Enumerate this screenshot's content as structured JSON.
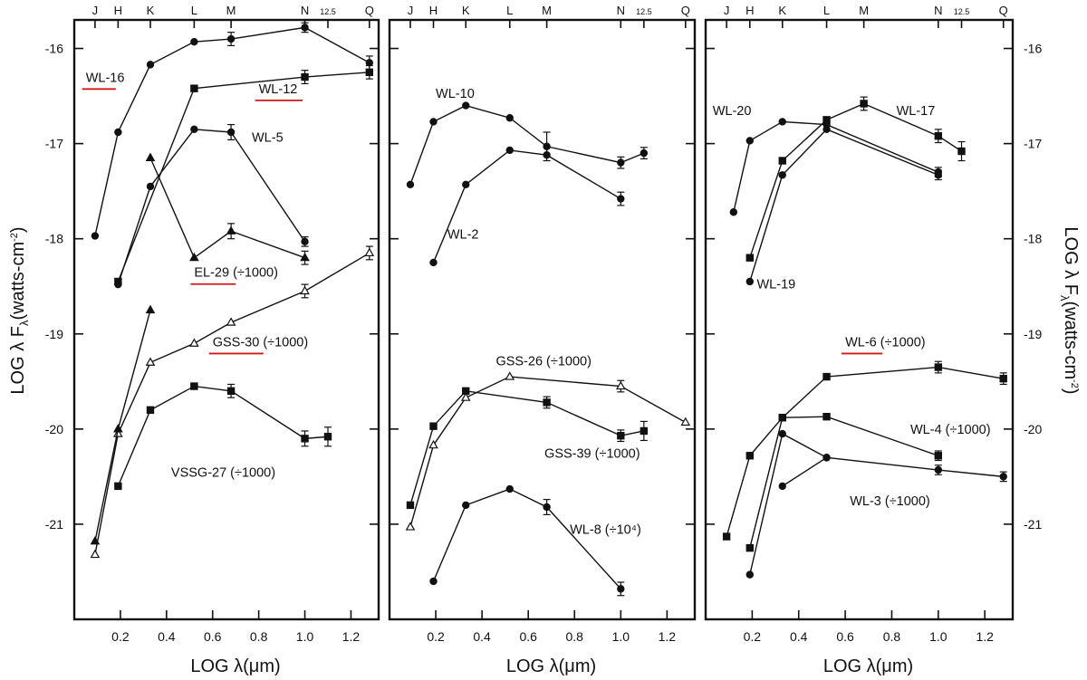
{
  "chart_data": [
    {
      "type": "line",
      "panel": "left",
      "xlabel": "LOG λ(μm)",
      "ylabel": "LOG λ F",
      "ylabel_sub": "λ",
      "ylabel_unit": "(watts-cm",
      "ylabel_exp": "-2",
      "ylabel_close": ")",
      "xlim": [
        0.0,
        1.32
      ],
      "ylim": [
        -22.0,
        -15.7
      ],
      "x_ticks": [
        {
          "value": 0.2,
          "label": "0.2"
        },
        {
          "value": 0.4,
          "label": "0.4"
        },
        {
          "value": 0.6,
          "label": "0.6"
        },
        {
          "value": 0.8,
          "label": "0.8"
        },
        {
          "value": 1.0,
          "label": "1.0"
        },
        {
          "value": 1.2,
          "label": "1.2"
        }
      ],
      "y_ticks": [
        {
          "value": -16,
          "label": "-16"
        },
        {
          "value": -17,
          "label": "-17"
        },
        {
          "value": -18,
          "label": "-18"
        },
        {
          "value": -19,
          "label": "-19"
        },
        {
          "value": -20,
          "label": "-20"
        },
        {
          "value": -21,
          "label": "-21"
        }
      ],
      "bands": [
        {
          "label": "J",
          "x": 0.09
        },
        {
          "label": "H",
          "x": 0.19
        },
        {
          "label": "K",
          "x": 0.33
        },
        {
          "label": "L",
          "x": 0.52
        },
        {
          "label": "M",
          "x": 0.68
        },
        {
          "label": "N",
          "x": 1.0
        },
        {
          "label": "12.5",
          "x": 1.1,
          "small": true
        },
        {
          "label": "Q",
          "x": 1.28
        }
      ],
      "series": [
        {
          "name": "WL-16",
          "marker": "circle",
          "underline": true,
          "label_pos": [
            0.05,
            -16.35
          ],
          "label_end": 0.18,
          "points": [
            {
              "x": 0.09,
              "y": -17.97
            },
            {
              "x": 0.19,
              "y": -16.88
            },
            {
              "x": 0.33,
              "y": -16.17
            },
            {
              "x": 0.52,
              "y": -15.93
            },
            {
              "x": 0.68,
              "y": -15.9,
              "err": 0.07
            },
            {
              "x": 1.0,
              "y": -15.78,
              "err": 0.05
            },
            {
              "x": 1.28,
              "y": -16.15,
              "err": 0.07
            }
          ]
        },
        {
          "name": "WL-12",
          "marker": "square",
          "underline": true,
          "label_pos": [
            0.8,
            -16.47
          ],
          "label_end": 0.99,
          "points": [
            {
              "x": 0.19,
              "y": -18.45
            },
            {
              "x": 0.52,
              "y": -16.42
            },
            {
              "x": 1.0,
              "y": -16.3,
              "err": 0.07
            },
            {
              "x": 1.28,
              "y": -16.25,
              "err": 0.07
            }
          ]
        },
        {
          "name": "WL-5",
          "marker": "circle",
          "label_pos": [
            0.77,
            -16.98
          ],
          "points": [
            {
              "x": 0.19,
              "y": -18.48
            },
            {
              "x": 0.33,
              "y": -17.45
            },
            {
              "x": 0.52,
              "y": -16.85
            },
            {
              "x": 0.68,
              "y": -16.88,
              "err": 0.08
            },
            {
              "x": 1.0,
              "y": -18.03,
              "err": 0.05
            }
          ]
        },
        {
          "name": "EL-29 (÷1000)",
          "marker": "triangle",
          "underline": true,
          "underline_label": "EL-29",
          "label_pos": [
            0.52,
            -18.4
          ],
          "label_end": 0.7,
          "points": [
            {
              "x": 0.33,
              "y": -17.15
            },
            {
              "x": 0.52,
              "y": -18.2
            },
            {
              "x": 0.68,
              "y": -17.92,
              "err": 0.08
            },
            {
              "x": 1.0,
              "y": -18.2,
              "err": 0.07
            }
          ]
        },
        {
          "name": "GSS-30 (÷1000)",
          "marker": "triangle-open",
          "underline": true,
          "underline_label": "GSS-30",
          "label_pos": [
            0.6,
            -19.13
          ],
          "label_end": 0.82,
          "points": [
            {
              "x": 0.09,
              "y": -21.32
            },
            {
              "x": 0.19,
              "y": -20.05
            },
            {
              "x": 0.33,
              "y": -19.3
            },
            {
              "x": 0.52,
              "y": -19.1
            },
            {
              "x": 0.68,
              "y": -18.88
            },
            {
              "x": 1.0,
              "y": -18.55,
              "err": 0.07
            },
            {
              "x": 1.28,
              "y": -18.15,
              "err": 0.07
            }
          ]
        },
        {
          "name": "",
          "marker": "triangle",
          "points": [
            {
              "x": 0.09,
              "y": -21.18
            },
            {
              "x": 0.19,
              "y": -20.0
            },
            {
              "x": 0.33,
              "y": -18.75
            }
          ]
        },
        {
          "name": "VSSG-27 (÷1000)",
          "marker": "square",
          "label_pos": [
            0.42,
            -20.5
          ],
          "points": [
            {
              "x": 0.19,
              "y": -20.6
            },
            {
              "x": 0.33,
              "y": -19.8
            },
            {
              "x": 0.52,
              "y": -19.55
            },
            {
              "x": 0.68,
              "y": -19.6,
              "err": 0.07
            },
            {
              "x": 1.0,
              "y": -20.1,
              "err": 0.08
            },
            {
              "x": 1.1,
              "y": -20.08,
              "err": 0.1
            }
          ]
        }
      ]
    },
    {
      "type": "line",
      "panel": "middle",
      "xlabel": "LOG λ(μm)",
      "xlim": [
        0.0,
        1.32
      ],
      "ylim": [
        -22.0,
        -15.7
      ],
      "x_ticks": [
        {
          "value": 0.2,
          "label": "0.2"
        },
        {
          "value": 0.4,
          "label": "0.4"
        },
        {
          "value": 0.6,
          "label": "0.6"
        },
        {
          "value": 0.8,
          "label": "0.8"
        },
        {
          "value": 1.0,
          "label": "1.0"
        },
        {
          "value": 1.2,
          "label": "1.2"
        }
      ],
      "bands": [
        {
          "label": "J",
          "x": 0.09
        },
        {
          "label": "H",
          "x": 0.19
        },
        {
          "label": "K",
          "x": 0.33
        },
        {
          "label": "L",
          "x": 0.52
        },
        {
          "label": "M",
          "x": 0.68
        },
        {
          "label": "N",
          "x": 1.0
        },
        {
          "label": "12.5",
          "x": 1.1,
          "small": true
        },
        {
          "label": "Q",
          "x": 1.28
        }
      ],
      "series": [
        {
          "name": "WL-10",
          "marker": "circle",
          "label_pos": [
            0.2,
            -16.52
          ],
          "points": [
            {
              "x": 0.09,
              "y": -17.43
            },
            {
              "x": 0.19,
              "y": -16.77
            },
            {
              "x": 0.33,
              "y": -16.6
            },
            {
              "x": 0.52,
              "y": -16.73
            },
            {
              "x": 0.68,
              "y": -17.03,
              "err": 0.15
            },
            {
              "x": 1.0,
              "y": -17.2,
              "err": 0.06
            },
            {
              "x": 1.1,
              "y": -17.1,
              "err": 0.06
            }
          ]
        },
        {
          "name": "WL-2",
          "marker": "circle",
          "label_pos": [
            0.25,
            -18.0
          ],
          "points": [
            {
              "x": 0.19,
              "y": -18.25
            },
            {
              "x": 0.33,
              "y": -17.43
            },
            {
              "x": 0.52,
              "y": -17.07
            },
            {
              "x": 0.68,
              "y": -17.12
            },
            {
              "x": 1.0,
              "y": -17.58,
              "err": 0.07
            }
          ]
        },
        {
          "name": "GSS-26 (÷1000)",
          "marker": "triangle-open",
          "label_pos": [
            0.46,
            -19.33
          ],
          "points": [
            {
              "x": 0.09,
              "y": -21.03
            },
            {
              "x": 0.19,
              "y": -20.17
            },
            {
              "x": 0.33,
              "y": -19.67
            },
            {
              "x": 0.52,
              "y": -19.45
            },
            {
              "x": 1.0,
              "y": -19.55,
              "err": 0.06
            },
            {
              "x": 1.28,
              "y": -19.93
            }
          ]
        },
        {
          "name": "GSS-39 (÷1000)",
          "marker": "square",
          "label_pos": [
            0.67,
            -20.3
          ],
          "points": [
            {
              "x": 0.09,
              "y": -20.8
            },
            {
              "x": 0.19,
              "y": -19.97
            },
            {
              "x": 0.33,
              "y": -19.6
            },
            {
              "x": 0.68,
              "y": -19.72,
              "err": 0.06
            },
            {
              "x": 1.0,
              "y": -20.07,
              "err": 0.06
            },
            {
              "x": 1.1,
              "y": -20.02,
              "err": 0.1
            }
          ]
        },
        {
          "name": "WL-8 (÷10⁴)",
          "marker": "circle",
          "label_pos": [
            0.78,
            -21.1
          ],
          "points": [
            {
              "x": 0.19,
              "y": -21.6
            },
            {
              "x": 0.33,
              "y": -20.8
            },
            {
              "x": 0.52,
              "y": -20.63
            },
            {
              "x": 0.68,
              "y": -20.82,
              "err": 0.08
            },
            {
              "x": 1.0,
              "y": -21.68,
              "err": 0.07
            }
          ]
        }
      ]
    },
    {
      "type": "line",
      "panel": "right",
      "xlabel": "LOG λ(μm)",
      "ylabel": "LOG λ F",
      "ylabel_sub": "λ",
      "ylabel_unit": "(watts-cm",
      "ylabel_exp": "-2",
      "ylabel_close": ")",
      "xlim": [
        0.0,
        1.32
      ],
      "ylim": [
        -22.0,
        -15.7
      ],
      "x_ticks": [
        {
          "value": 0.2,
          "label": "0.2"
        },
        {
          "value": 0.4,
          "label": "0.4"
        },
        {
          "value": 0.6,
          "label": "0.6"
        },
        {
          "value": 0.8,
          "label": "0.8"
        },
        {
          "value": 1.0,
          "label": "1.0"
        },
        {
          "value": 1.2,
          "label": "1.2"
        }
      ],
      "y_ticks": [
        {
          "value": -16,
          "label": "-16"
        },
        {
          "value": -17,
          "label": "-17"
        },
        {
          "value": -18,
          "label": "-18"
        },
        {
          "value": -19,
          "label": "-19"
        },
        {
          "value": -20,
          "label": "-20"
        },
        {
          "value": -21,
          "label": "-21"
        }
      ],
      "bands": [
        {
          "label": "J",
          "x": 0.09
        },
        {
          "label": "H",
          "x": 0.19
        },
        {
          "label": "K",
          "x": 0.33
        },
        {
          "label": "L",
          "x": 0.52
        },
        {
          "label": "M",
          "x": 0.68
        },
        {
          "label": "N",
          "x": 1.0
        },
        {
          "label": "12.5",
          "x": 1.1,
          "small": true
        },
        {
          "label": "Q",
          "x": 1.28
        }
      ],
      "series": [
        {
          "name": "WL-20",
          "marker": "circle",
          "label_pos": [
            0.03,
            -16.7
          ],
          "points": [
            {
              "x": 0.12,
              "y": -17.72
            },
            {
              "x": 0.19,
              "y": -16.97
            },
            {
              "x": 0.33,
              "y": -16.77
            },
            {
              "x": 0.52,
              "y": -16.8
            },
            {
              "x": 1.0,
              "y": -17.3,
              "err": 0.05
            }
          ]
        },
        {
          "name": "WL-17",
          "marker": "square",
          "label_pos": [
            0.82,
            -16.7
          ],
          "points": [
            {
              "x": 0.19,
              "y": -18.2
            },
            {
              "x": 0.33,
              "y": -17.18
            },
            {
              "x": 0.52,
              "y": -16.75
            },
            {
              "x": 0.68,
              "y": -16.58,
              "err": 0.07
            },
            {
              "x": 1.0,
              "y": -16.92,
              "err": 0.07
            },
            {
              "x": 1.1,
              "y": -17.08,
              "err": 0.1
            }
          ]
        },
        {
          "name": "WL-19",
          "marker": "circle",
          "label_pos": [
            0.22,
            -18.52
          ],
          "points": [
            {
              "x": 0.19,
              "y": -18.45
            },
            {
              "x": 0.33,
              "y": -17.33
            },
            {
              "x": 0.52,
              "y": -16.85
            },
            {
              "x": 1.0,
              "y": -17.33,
              "err": 0.05
            }
          ]
        },
        {
          "name": "WL-6 (÷1000)",
          "marker": "square",
          "underline": true,
          "underline_label": "WL-6",
          "label_pos": [
            0.6,
            -19.13
          ],
          "label_end": 0.76,
          "points": [
            {
              "x": 0.09,
              "y": -21.13
            },
            {
              "x": 0.19,
              "y": -20.28
            },
            {
              "x": 0.33,
              "y": -19.88
            },
            {
              "x": 0.52,
              "y": -19.45
            },
            {
              "x": 1.0,
              "y": -19.35,
              "err": 0.06
            },
            {
              "x": 1.28,
              "y": -19.47,
              "err": 0.06
            }
          ]
        },
        {
          "name": "WL-4 (÷1000)",
          "marker": "square",
          "label_pos": [
            0.88,
            -20.05
          ],
          "points": [
            {
              "x": 0.19,
              "y": -21.25
            },
            {
              "x": 0.33,
              "y": -19.88
            },
            {
              "x": 0.52,
              "y": -19.87
            },
            {
              "x": 1.0,
              "y": -20.28,
              "err": 0.05
            }
          ]
        },
        {
          "name": "WL-3 (÷1000)",
          "marker": "circle",
          "label_pos": [
            0.62,
            -20.8
          ],
          "points": [
            {
              "x": 0.19,
              "y": -21.53
            },
            {
              "x": 0.33,
              "y": -20.05
            },
            {
              "x": 0.52,
              "y": -20.3
            },
            {
              "x": 1.0,
              "y": -20.43,
              "err": 0.05
            },
            {
              "x": 1.28,
              "y": -20.5,
              "err": 0.05
            }
          ]
        },
        {
          "name": "",
          "marker": "circle",
          "points": [
            {
              "x": 0.33,
              "y": -20.6
            },
            {
              "x": 0.52,
              "y": -20.3
            }
          ]
        }
      ]
    }
  ]
}
